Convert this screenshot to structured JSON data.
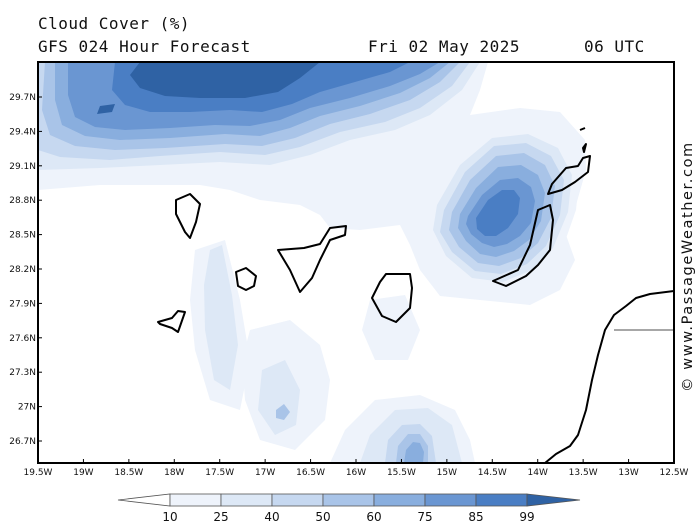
{
  "header": {
    "title": "Cloud Cover (%)",
    "subtitle": "GFS 024 Hour Forecast",
    "date": "Fri 02 May 2025",
    "time": "06 UTC"
  },
  "map": {
    "lat_labels": [
      "29.7N",
      "29.4N",
      "29.1N",
      "28.8N",
      "28.5N",
      "28.2N",
      "27.9N",
      "27.6N",
      "27.3N",
      "27N",
      "26.7N"
    ],
    "lon_labels": [
      "19.5W",
      "19W",
      "18.5W",
      "18W",
      "17.5W",
      "17W",
      "16.5W",
      "16W",
      "15.5W",
      "15W",
      "14.5W",
      "14W",
      "13.5W",
      "13W",
      "12.5W"
    ]
  },
  "legend": {
    "labels": [
      "10",
      "25",
      "40",
      "50",
      "60",
      "75",
      "85",
      "99"
    ],
    "colors": [
      "#ffffff",
      "#eef3fb",
      "#dde8f6",
      "#c6d8f0",
      "#a9c4e8",
      "#89aede",
      "#6a96d2",
      "#4a7ec4",
      "#2f62a4"
    ]
  },
  "credit": "© www.PassageWeather.com"
}
